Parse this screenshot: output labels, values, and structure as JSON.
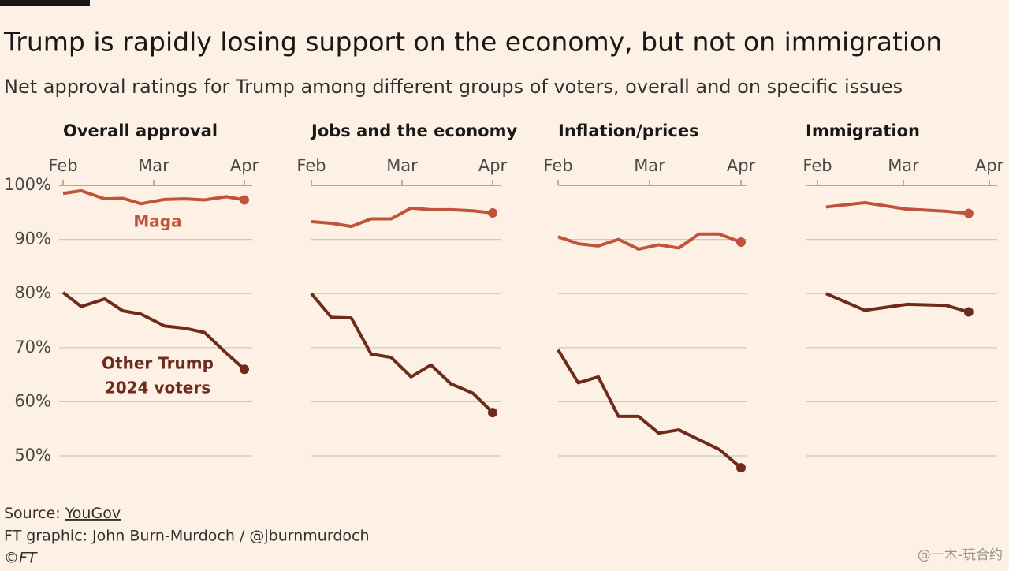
{
  "title": "Trump is rapidly losing support on the economy, but not on immigration",
  "subtitle": "Net approval ratings for Trump among different groups of voters, overall and on specific issues",
  "source_label": "Source:",
  "source": "YouGov",
  "credit": "FT graphic: John Burn-Murdoch / @jburnmurdoch",
  "copyright": "©FT",
  "watermark": "@一木-玩合约",
  "annotations": [
    {
      "text": "Maga",
      "series": 0
    },
    {
      "text": "Other Trump",
      "series": 1
    },
    {
      "text": "2024 voters",
      "series": 1
    }
  ],
  "chart_data": [
    {
      "type": "line",
      "title": "Overall approval",
      "x": [
        0,
        1,
        2.3,
        3.3,
        4.3,
        5.6,
        6.7,
        7.8,
        9,
        10
      ],
      "series": [
        {
          "name": "Maga",
          "color": "#c0533a",
          "values": [
            98.5,
            99,
            97.5,
            97.6,
            96.6,
            97.4,
            97.5,
            97.3,
            97.9,
            97.3
          ]
        },
        {
          "name": "Other Trump 2024 voters",
          "color": "#6e2b1b",
          "values": [
            80.2,
            77.6,
            79,
            76.8,
            76.2,
            74,
            73.6,
            72.8,
            69,
            66
          ]
        }
      ],
      "xlim": [
        0,
        10
      ],
      "xticks": [
        {
          "value": 0,
          "label": "Feb"
        },
        {
          "value": 5,
          "label": "Mar"
        },
        {
          "value": 10,
          "label": "Apr"
        }
      ],
      "ylim": [
        47,
        100
      ],
      "yticks": [
        {
          "value": 100,
          "label": "100%"
        },
        {
          "value": 90,
          "label": "90%"
        },
        {
          "value": 80,
          "label": "80%"
        },
        {
          "value": 70,
          "label": "70%"
        },
        {
          "value": 60,
          "label": "60%"
        },
        {
          "value": 50,
          "label": "50%"
        }
      ],
      "ytick_labels": true,
      "grid": true
    },
    {
      "type": "line",
      "title": "Jobs and the economy",
      "x": [
        0,
        1.1,
        2.2,
        3.3,
        4.4,
        5.5,
        6.6,
        7.7,
        8.9,
        10
      ],
      "series": [
        {
          "name": "Maga",
          "color": "#c0533a",
          "values": [
            93.3,
            93,
            92.4,
            93.8,
            93.8,
            95.8,
            95.5,
            95.5,
            95.3,
            94.9
          ]
        },
        {
          "name": "Other Trump 2024 voters",
          "color": "#6e2b1b",
          "values": [
            80,
            75.6,
            75.5,
            68.8,
            68.2,
            64.6,
            66.8,
            63.3,
            61.6,
            58
          ]
        }
      ],
      "xlim": [
        0,
        10
      ],
      "xticks": [
        {
          "value": 0,
          "label": "Feb"
        },
        {
          "value": 5,
          "label": "Mar"
        },
        {
          "value": 10,
          "label": "Apr"
        }
      ],
      "ylim": [
        47,
        100
      ],
      "yticks": [
        100,
        90,
        80,
        70,
        60,
        50
      ],
      "ytick_labels": false,
      "grid": true
    },
    {
      "type": "line",
      "title": "Inflation/prices",
      "x": [
        0,
        1.1,
        2.2,
        3.3,
        4.4,
        5.5,
        6.6,
        7.7,
        8.8,
        10
      ],
      "series": [
        {
          "name": "Maga",
          "color": "#c0533a",
          "values": [
            90.5,
            89.2,
            88.8,
            90,
            88.2,
            89,
            88.4,
            91,
            91,
            89.5
          ]
        },
        {
          "name": "Other Trump 2024 voters",
          "color": "#6e2b1b",
          "values": [
            69.6,
            63.5,
            64.6,
            57.3,
            57.3,
            54.2,
            54.8,
            53,
            51.2,
            47.8
          ]
        }
      ],
      "xlim": [
        0,
        10
      ],
      "xticks": [
        {
          "value": 0,
          "label": "Feb"
        },
        {
          "value": 5,
          "label": "Mar"
        },
        {
          "value": 10,
          "label": "Apr"
        }
      ],
      "ylim": [
        47,
        100
      ],
      "yticks": [
        100,
        90,
        80,
        70,
        60,
        50
      ],
      "ytick_labels": false,
      "grid": true
    },
    {
      "type": "line",
      "title": "Immigration",
      "x": [
        0.5,
        2.75,
        5.2,
        7.5,
        8.8
      ],
      "series": [
        {
          "name": "Maga",
          "color": "#c0533a",
          "values": [
            96,
            96.8,
            95.6,
            95.2,
            94.8
          ]
        },
        {
          "name": "Other Trump 2024 voters",
          "color": "#6e2b1b",
          "values": [
            80,
            76.9,
            78,
            77.8,
            76.6
          ]
        }
      ],
      "xlim": [
        0,
        10
      ],
      "xticks": [
        {
          "value": 0,
          "label": "Feb"
        },
        {
          "value": 5,
          "label": "Mar"
        },
        {
          "value": 10,
          "label": "Apr"
        }
      ],
      "ylim": [
        47,
        100
      ],
      "yticks": [
        100,
        90,
        80,
        70,
        60,
        50
      ],
      "ytick_labels": false,
      "grid": true
    }
  ]
}
